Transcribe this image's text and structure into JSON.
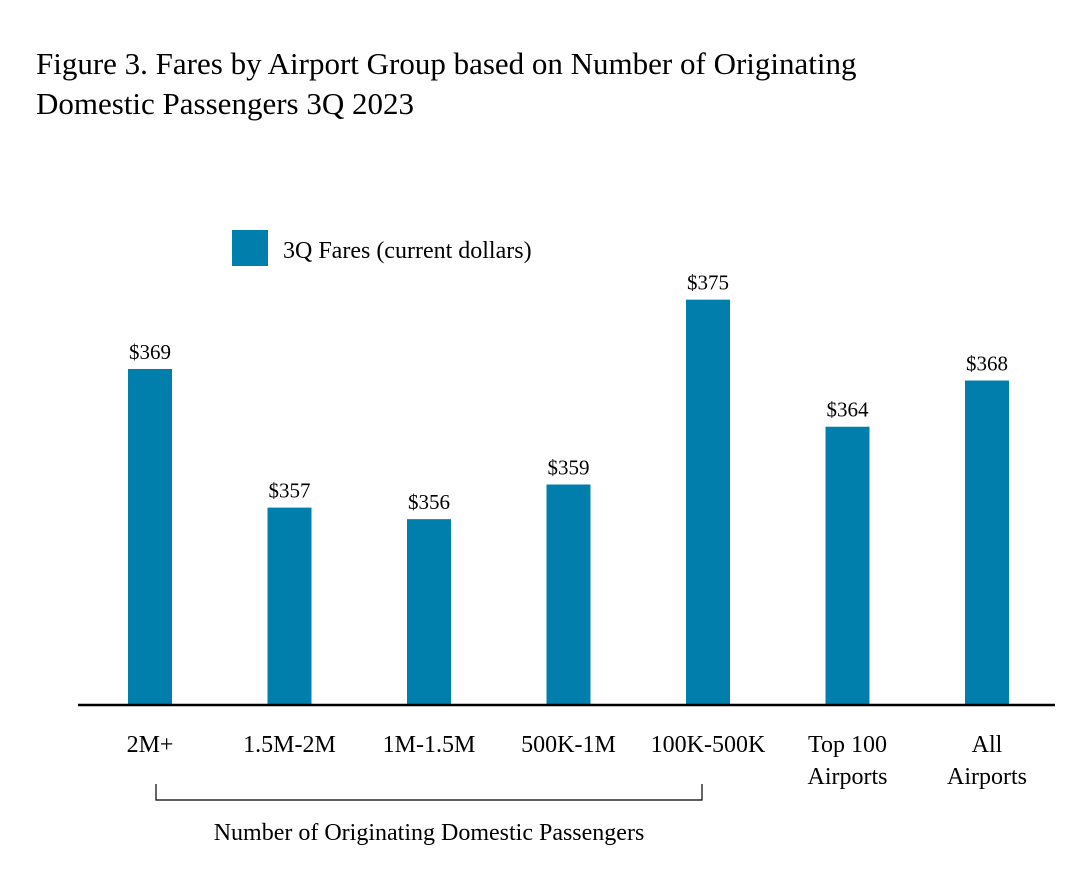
{
  "figure": {
    "title_line1": "Figure 3. Fares by Airport Group based on Number of Originating",
    "title_line2": "Domestic Passengers 3Q 2023"
  },
  "chart_data": {
    "type": "bar",
    "categories": [
      [
        "2M+"
      ],
      [
        "1.5M-2M"
      ],
      [
        "1M-1.5M"
      ],
      [
        "500K-1M"
      ],
      [
        "100K-500K"
      ],
      [
        "Top 100",
        "Airports"
      ],
      [
        "All",
        "Airports"
      ]
    ],
    "series": [
      {
        "name": "3Q Fares (current dollars)",
        "values": [
          369,
          357,
          356,
          359,
          375,
          364,
          368
        ],
        "color": "#007fad"
      }
    ],
    "data_labels": [
      "$369",
      "$357",
      "$356",
      "$359",
      "$375",
      "$364",
      "$368"
    ],
    "ylim": [
      340,
      378
    ],
    "grid": false,
    "legend": "top-left",
    "bracket": {
      "label": "Number of Originating Domestic Passengers",
      "from_category": 0,
      "to_category": 4
    }
  }
}
